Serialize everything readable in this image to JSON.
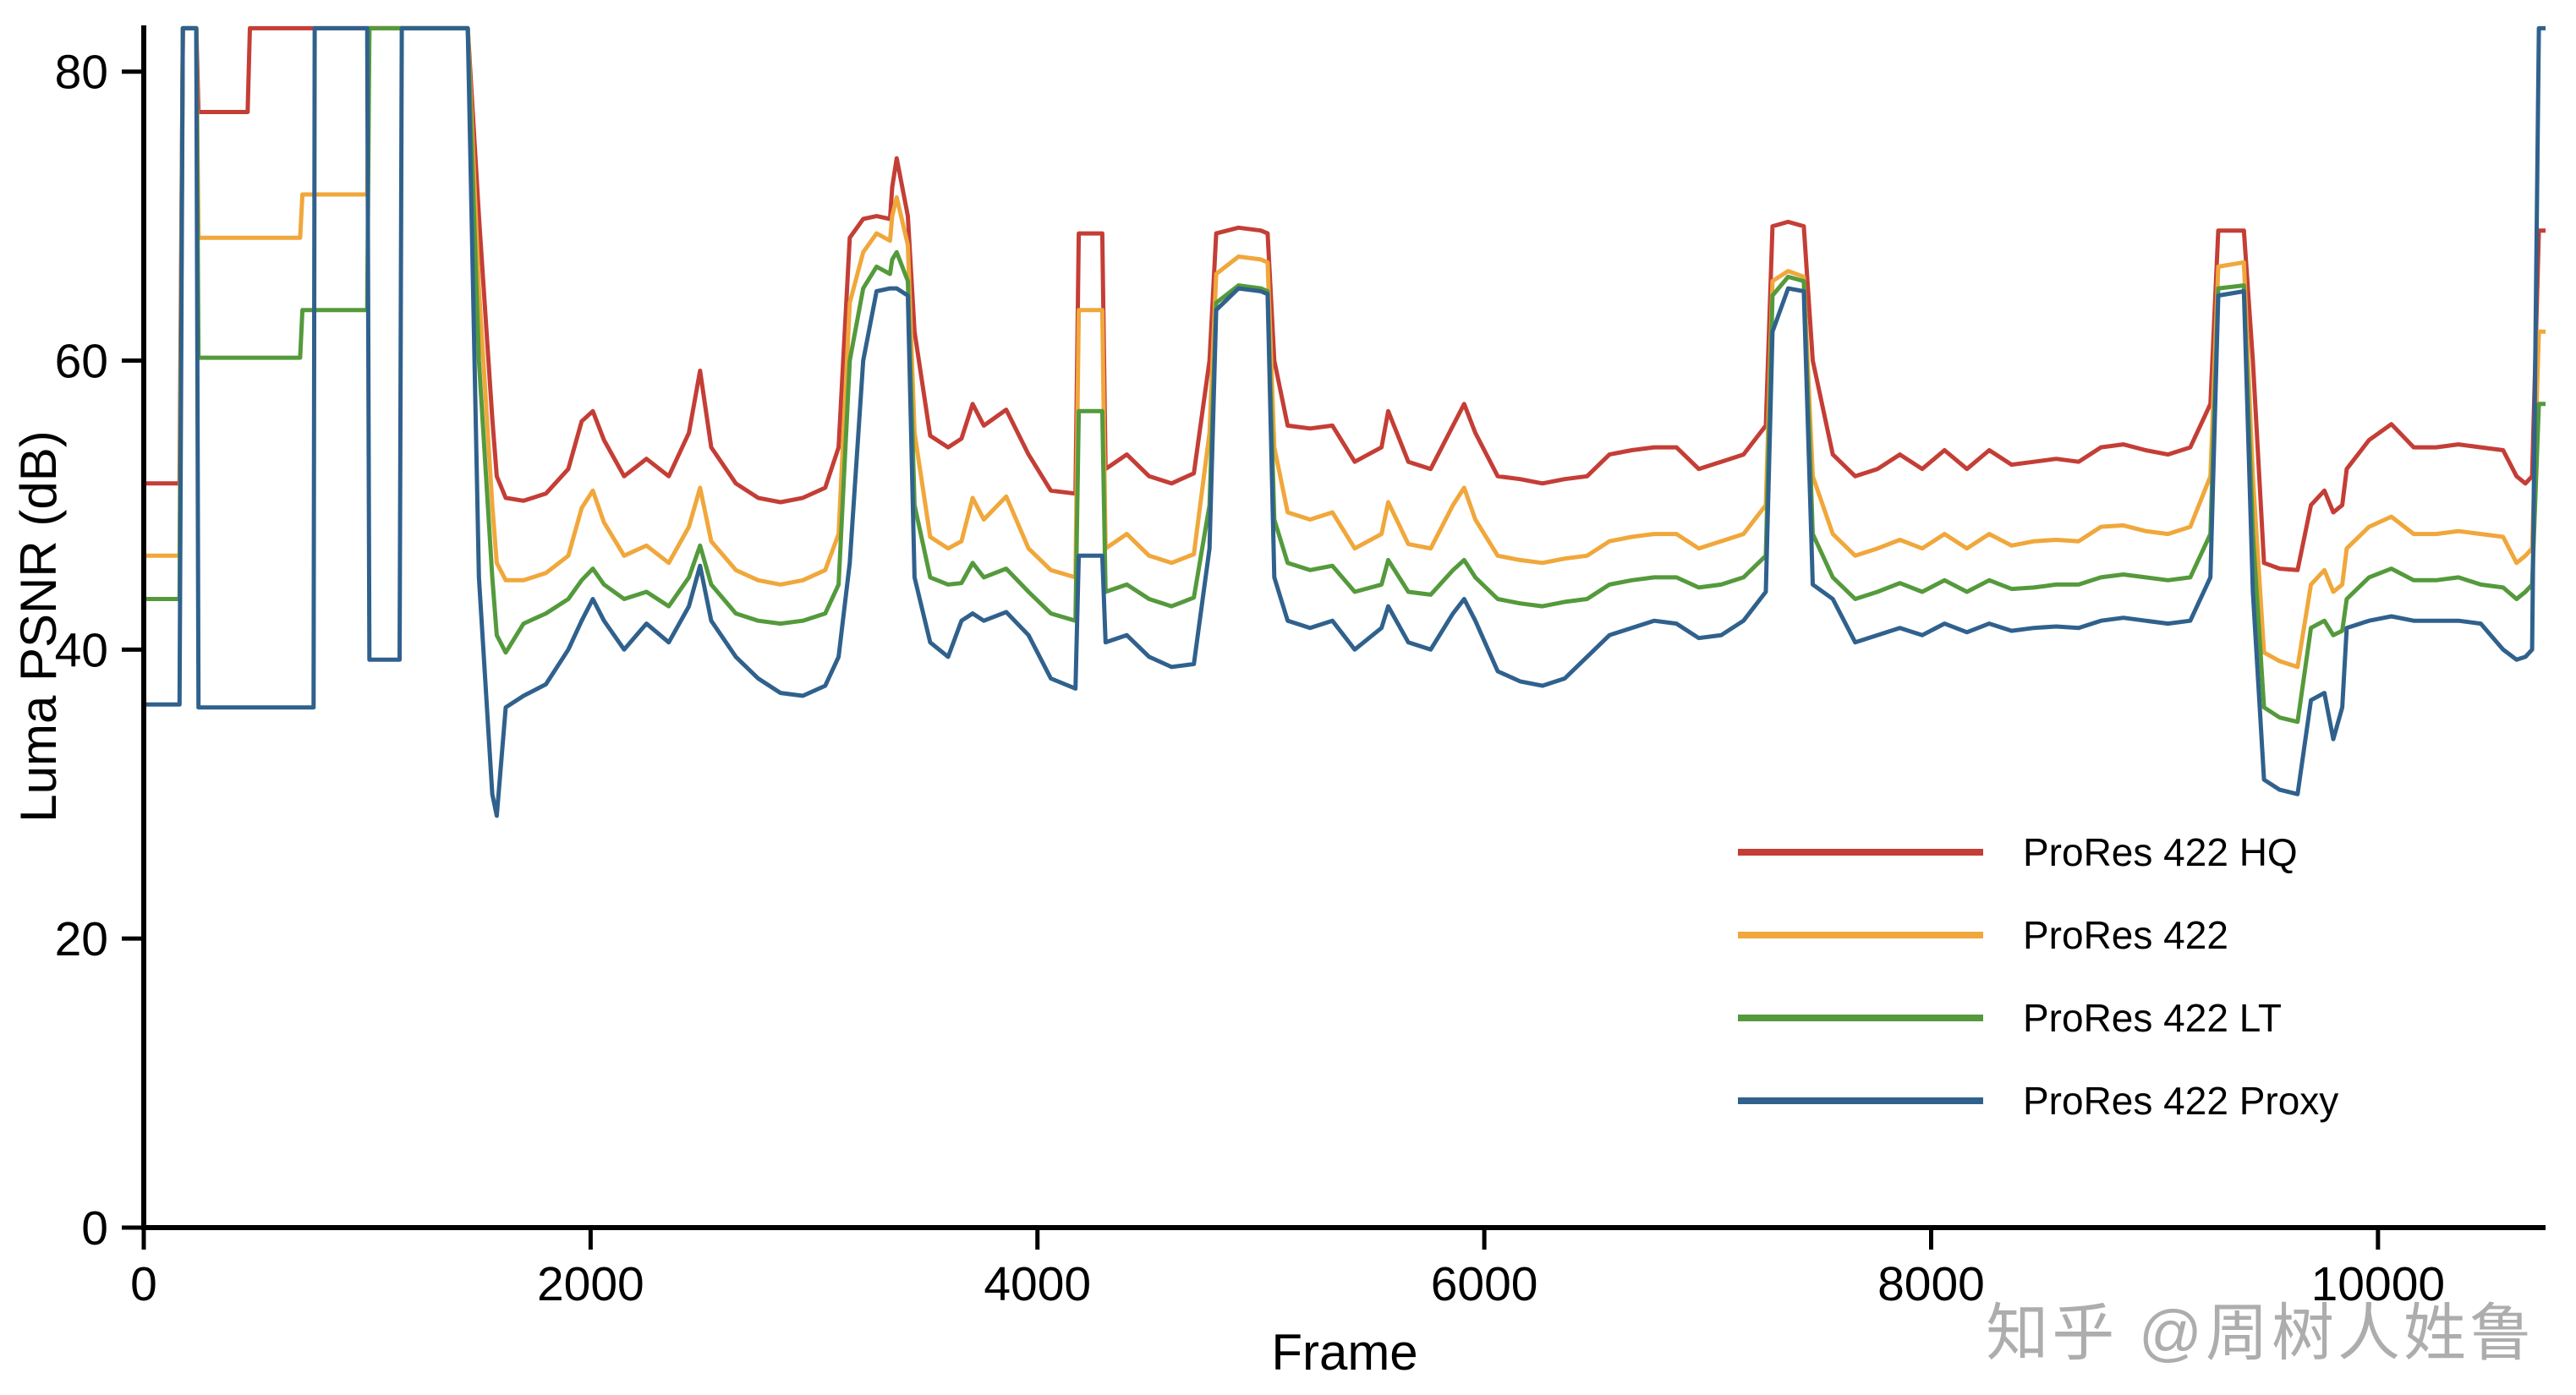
{
  "watermark": {
    "text": "知乎 @周树人姓鲁",
    "color": "#9f9f9f"
  },
  "chart_data": {
    "type": "line",
    "title": "",
    "xlabel": "Frame",
    "ylabel": "Luma PSNR (dB)",
    "xlim": [
      0,
      10750
    ],
    "ylim": [
      0,
      80
    ],
    "x_ticks": [
      0,
      2000,
      4000,
      6000,
      8000,
      10000
    ],
    "y_ticks": [
      0,
      20,
      40,
      60,
      80
    ],
    "grid": false,
    "legend_position": "lower right",
    "clip_note": "values of 83 represent off-scale segments clipped at the top of the axes",
    "axis_color": "#000000",
    "x": [
      0,
      160,
      175,
      235,
      245,
      370,
      385,
      465,
      475,
      700,
      710,
      760,
      765,
      1000,
      1010,
      1145,
      1155,
      1450,
      1500,
      1560,
      1580,
      1620,
      1700,
      1800,
      1900,
      1960,
      2010,
      2060,
      2150,
      2250,
      2350,
      2440,
      2490,
      2540,
      2650,
      2750,
      2850,
      2950,
      3050,
      3110,
      3160,
      3220,
      3280,
      3340,
      3350,
      3370,
      3420,
      3450,
      3520,
      3600,
      3660,
      3710,
      3760,
      3860,
      3960,
      4060,
      4170,
      4185,
      4290,
      4305,
      4400,
      4500,
      4600,
      4700,
      4770,
      4800,
      4900,
      5000,
      5030,
      5060,
      5120,
      5220,
      5320,
      5420,
      5540,
      5570,
      5660,
      5760,
      5860,
      5910,
      5960,
      6060,
      6160,
      6260,
      6360,
      6460,
      6560,
      6660,
      6760,
      6860,
      6960,
      7060,
      7160,
      7260,
      7290,
      7360,
      7430,
      7470,
      7560,
      7660,
      7760,
      7860,
      7960,
      8060,
      8160,
      8260,
      8360,
      8460,
      8560,
      8660,
      8760,
      8860,
      8960,
      9060,
      9160,
      9250,
      9285,
      9400,
      9440,
      9490,
      9560,
      9640,
      9700,
      9760,
      9800,
      9840,
      9860,
      9960,
      10060,
      10160,
      10260,
      10360,
      10460,
      10560,
      10620,
      10660,
      10690,
      10720,
      10750
    ],
    "series": [
      {
        "name": "ProRes 422 HQ",
        "color": "#c43e36",
        "values": [
          51.5,
          51.5,
          83,
          83,
          77.2,
          77.2,
          77.2,
          77.2,
          83,
          83,
          83,
          83,
          83,
          83,
          83,
          83,
          83,
          83,
          70,
          56,
          52,
          50.5,
          50.3,
          50.8,
          52.5,
          55.8,
          56.5,
          54.5,
          52,
          53.2,
          52,
          55,
          59.3,
          54,
          51.5,
          50.5,
          50.2,
          50.5,
          51.2,
          54,
          68.5,
          69.8,
          70,
          69.8,
          72,
          74,
          70,
          62,
          54.8,
          54,
          54.6,
          57,
          55.5,
          56.6,
          53.5,
          51,
          50.8,
          68.8,
          68.8,
          52.5,
          53.5,
          52,
          51.5,
          52.2,
          60,
          68.8,
          69.2,
          69,
          68.8,
          60,
          55.5,
          55.3,
          55.5,
          53,
          54,
          56.5,
          53,
          52.5,
          55.5,
          57,
          55,
          52,
          51.8,
          51.5,
          51.8,
          52,
          53.5,
          53.8,
          54,
          54,
          52.5,
          53,
          53.5,
          55.5,
          69.3,
          69.6,
          69.3,
          60,
          53.5,
          52,
          52.5,
          53.5,
          52.5,
          53.8,
          52.5,
          53.8,
          52.8,
          53,
          53.2,
          53,
          54,
          54.2,
          53.8,
          53.5,
          54,
          57,
          69,
          69,
          60,
          46,
          45.6,
          45.5,
          50,
          51,
          49.5,
          50,
          52.5,
          54.5,
          55.6,
          54,
          54,
          54.2,
          54,
          53.8,
          52,
          51.5,
          52,
          69,
          69
        ]
      },
      {
        "name": "ProRes 422",
        "color": "#f0a73b",
        "values": [
          46.5,
          46.5,
          83,
          83,
          68.5,
          68.5,
          68.5,
          68.5,
          68.5,
          68.5,
          71.5,
          71.5,
          71.5,
          71.5,
          83,
          83,
          83,
          83,
          65,
          50,
          46,
          44.8,
          44.8,
          45.3,
          46.5,
          49.8,
          51,
          48.8,
          46.5,
          47.2,
          46,
          48.5,
          51.2,
          47.5,
          45.5,
          44.8,
          44.5,
          44.8,
          45.5,
          48,
          64,
          67.5,
          68.8,
          68.3,
          70,
          71.3,
          68,
          55,
          47.8,
          47,
          47.5,
          50.5,
          49,
          50.6,
          47,
          45.5,
          45,
          63.5,
          63.5,
          47,
          48,
          46.5,
          46,
          46.6,
          55,
          66,
          67.2,
          67,
          66.8,
          54,
          49.5,
          49,
          49.5,
          47,
          48,
          50.2,
          47.3,
          47,
          50,
          51.2,
          49,
          46.5,
          46.2,
          46,
          46.3,
          46.5,
          47.5,
          47.8,
          48,
          48,
          47,
          47.5,
          48,
          50,
          65.5,
          66.2,
          65.8,
          52,
          48,
          46.5,
          47,
          47.6,
          47,
          48,
          47,
          48,
          47.2,
          47.5,
          47.6,
          47.5,
          48.5,
          48.6,
          48.2,
          48,
          48.5,
          52,
          66.5,
          66.8,
          52,
          39.8,
          39.2,
          38.8,
          44.5,
          45.5,
          44,
          44.5,
          47,
          48.5,
          49.2,
          48,
          48,
          48.2,
          48,
          47.8,
          46,
          46.5,
          47,
          62,
          62
        ]
      },
      {
        "name": "ProRes 422 LT",
        "color": "#549a3c",
        "values": [
          43.5,
          43.5,
          83,
          83,
          60.2,
          60.2,
          60.2,
          60.2,
          60.2,
          60.2,
          63.5,
          63.5,
          63.5,
          63.5,
          83,
          83,
          83,
          83,
          60,
          45,
          41,
          39.8,
          41.8,
          42.5,
          43.5,
          44.8,
          45.6,
          44.5,
          43.5,
          44,
          43,
          45,
          47.2,
          44.5,
          42.5,
          42,
          41.8,
          42,
          42.5,
          44.5,
          60,
          65,
          66.5,
          66,
          67,
          67.5,
          65.5,
          50,
          45,
          44.5,
          44.6,
          46,
          45,
          45.6,
          44,
          42.5,
          42,
          56.5,
          56.5,
          44,
          44.5,
          43.5,
          43,
          43.6,
          50,
          64,
          65.2,
          65,
          64.8,
          49,
          46,
          45.5,
          45.8,
          44,
          44.5,
          46.2,
          44,
          43.8,
          45.5,
          46.2,
          45,
          43.5,
          43.2,
          43,
          43.3,
          43.5,
          44.5,
          44.8,
          45,
          45,
          44.3,
          44.5,
          45,
          46.5,
          64.5,
          65.8,
          65.5,
          48,
          45,
          43.5,
          44,
          44.6,
          44,
          44.8,
          44,
          44.8,
          44.2,
          44.3,
          44.5,
          44.5,
          45,
          45.2,
          45,
          44.8,
          45,
          48,
          65,
          65.2,
          48,
          36,
          35.3,
          35,
          41.5,
          42,
          41,
          41.3,
          43.5,
          45,
          45.6,
          44.8,
          44.8,
          45,
          44.5,
          44.3,
          43.5,
          44,
          44.5,
          57,
          57
        ]
      },
      {
        "name": "ProRes 422 Proxy",
        "color": "#30618d",
        "values": [
          36.2,
          36.2,
          83,
          83,
          36,
          36,
          36,
          36,
          36,
          36,
          36,
          36,
          83,
          83,
          39.3,
          39.3,
          83,
          83,
          45,
          30,
          28.5,
          36,
          36.8,
          37.6,
          40,
          42,
          43.5,
          42,
          40,
          41.8,
          40.5,
          43,
          45.8,
          42,
          39.5,
          38,
          37,
          36.8,
          37.5,
          39.5,
          46,
          60,
          64.8,
          65,
          65,
          65,
          64.5,
          45,
          40.5,
          39.5,
          42,
          42.5,
          42,
          42.6,
          41,
          38,
          37.3,
          46.5,
          46.5,
          40.5,
          41,
          39.5,
          38.8,
          39,
          47,
          63.5,
          65,
          64.8,
          64.6,
          45,
          42,
          41.5,
          42,
          40,
          41.5,
          43,
          40.5,
          40,
          42.5,
          43.5,
          42,
          38.5,
          37.8,
          37.5,
          38,
          39.5,
          41,
          41.5,
          42,
          41.8,
          40.8,
          41,
          42,
          44,
          62,
          65,
          64.8,
          44.5,
          43.5,
          40.5,
          41,
          41.5,
          41,
          41.8,
          41.2,
          41.8,
          41.3,
          41.5,
          41.6,
          41.5,
          42,
          42.2,
          42,
          41.8,
          42,
          45,
          64.5,
          64.8,
          44,
          31,
          30.3,
          30,
          36.5,
          37,
          33.8,
          36,
          41.5,
          42,
          42.3,
          42,
          42,
          42,
          41.8,
          40,
          39.3,
          39.5,
          40,
          83,
          83
        ]
      }
    ]
  }
}
